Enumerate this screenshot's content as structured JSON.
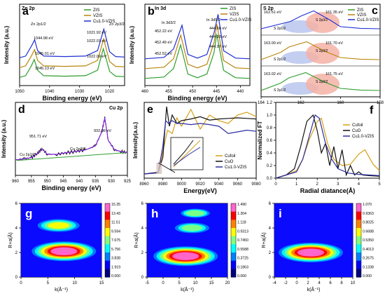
{
  "panels": {
    "a": {
      "letter": "a",
      "corner_title": "Zn 2p",
      "xlabel": "Binding energy (eV)",
      "ylabel": "Intensity (a.u.)",
      "xlim": [
        1050,
        1015
      ],
      "xticks": [
        1050,
        1040,
        1030,
        1020
      ],
      "peak_labels": [
        "Zn 2p1/2",
        "Zn 2p3/2"
      ],
      "legend": [
        {
          "name": "ZIS",
          "color": "#2e9e2e"
        },
        {
          "name": "VZIS",
          "color": "#b8860b"
        },
        {
          "name": "Cu1.0-VZIS",
          "color": "#1f2fd6"
        }
      ],
      "annotations": [
        "1044.98 eV",
        "1045.01 eV",
        "1045.13 eV",
        "1021.92 eV",
        "1022.01 eV",
        "1022.09 eV"
      ]
    },
    "b": {
      "letter": "b",
      "corner_title": "In 3d",
      "xlabel": "Binding energy (eV)",
      "ylabel": "Intensity (a.u.)",
      "xlim": [
        460,
        438
      ],
      "xticks": [
        460,
        455,
        450,
        445,
        440
      ],
      "peak_labels": [
        "In 3d3/2",
        "In 3d5/2"
      ],
      "legend": [
        {
          "name": "ZIS",
          "color": "#2e9e2e"
        },
        {
          "name": "VZIS",
          "color": "#b8860b"
        },
        {
          "name": "Cu1.0-VZIS",
          "color": "#1f2fd6"
        }
      ],
      "annotations": [
        "452.22 eV",
        "452.49 eV",
        "452.52 eV",
        "444.68 eV",
        "444.93 eV",
        "444.97 eV"
      ]
    },
    "c": {
      "letter": "c",
      "corner_title": "S 2p",
      "xlabel": "",
      "ylabel": "",
      "xlim": [
        164,
        158
      ],
      "xticks": [
        164,
        162,
        160,
        158
      ],
      "legend": [
        {
          "name": "ZIS",
          "color": "#2e9e2e"
        },
        {
          "name": "VZIS",
          "color": "#b8860b"
        },
        {
          "name": "Cu1.0-VZIS",
          "color": "#1f2fd6"
        }
      ],
      "rows": [
        {
          "left": "162.51 eV",
          "right": "161.35 eV"
        },
        {
          "left": "163.00 eV",
          "right": "161.70 eV"
        },
        {
          "left": "163.02 eV",
          "right": "161.75 eV"
        }
      ],
      "components": [
        "S 2p1/2",
        "S 2p3/2"
      ]
    },
    "d": {
      "letter": "d",
      "corner_title": "Cu 2p",
      "xlabel": "Binding energy (eV)",
      "ylabel": "Intensity (a.u.)",
      "xlim": [
        960,
        925
      ],
      "xticks": [
        960,
        955,
        950,
        945,
        940,
        935,
        930,
        925
      ],
      "annotations": [
        "951.71 eV",
        "932.06 eV"
      ],
      "peak_labels": [
        "Cu 2p1/2",
        "Cu 2p3/2"
      ]
    },
    "e": {
      "letter": "e",
      "xlabel": "Energy(eV)",
      "ylabel": "Intensity(a.u.)",
      "xlim": [
        8960,
        9080
      ],
      "xticks": [
        8960,
        8980,
        9000,
        9020,
        9040,
        9060,
        9080
      ],
      "legend": [
        {
          "name": "Cufoil",
          "color": "#d4a017"
        },
        {
          "name": "CuO",
          "color": "#111111"
        },
        {
          "name": "Cu1.0-VZIS",
          "color": "#2c2ca0"
        }
      ]
    },
    "f": {
      "letter": "f",
      "xlabel": "Radial diatance(Å)",
      "ylabel": "Normalized FT",
      "xlim": [
        0,
        5
      ],
      "ylim": [
        0,
        1.2
      ],
      "xticks": [
        0,
        1,
        2,
        3,
        4,
        5
      ],
      "yticks": [
        0.0,
        0.2,
        0.4,
        0.6,
        0.8,
        1.0,
        1.2
      ],
      "legend": [
        {
          "name": "Cufoil",
          "color": "#d4a017"
        },
        {
          "name": "CuO",
          "color": "#111111"
        },
        {
          "name": "Cu1.0-VZIS",
          "color": "#2c2ca0"
        }
      ]
    },
    "g": {
      "letter": "g",
      "xlabel": "k(Å⁻¹)",
      "ylabel": "R+a(Å)",
      "xlim": [
        0,
        15
      ],
      "ylim": [
        0,
        6
      ],
      "xticks": [
        0,
        5,
        10,
        15
      ],
      "yticks": [
        0,
        2,
        4,
        6
      ],
      "colorbar": [
        "15.35",
        "13.43",
        "11.51",
        "9.594",
        "7.675",
        "5.756",
        "3.838",
        "1.919",
        "0.000"
      ]
    },
    "h": {
      "letter": "h",
      "xlabel": "k(Å⁻¹)",
      "ylabel": "R+a(Å)",
      "xlim": [
        -5,
        20
      ],
      "ylim": [
        0,
        6
      ],
      "xticks": [
        -5,
        0,
        5,
        10,
        15,
        20
      ],
      "yticks": [
        0,
        2,
        4,
        6
      ],
      "colorbar": [
        "1.490",
        "1.304",
        "1.118",
        "0.9313",
        "0.7450",
        "0.5588",
        "0.3725",
        "0.1863",
        "0.000"
      ]
    },
    "i": {
      "letter": "i",
      "xlabel": "k(Å⁻¹)",
      "ylabel": "R+a(Å)",
      "xlim": [
        -4,
        10
      ],
      "ylim": [
        0,
        6
      ],
      "xticks": [
        -4,
        -2,
        0,
        2,
        4,
        6,
        8,
        10
      ],
      "yticks": [
        0,
        2,
        4,
        6
      ],
      "colorbar": [
        "1.070",
        "0.9363",
        "0.8025",
        "0.6688",
        "0.5350",
        "0.4013",
        "0.2675",
        "0.1338",
        "0.000"
      ]
    }
  },
  "chart_data": [
    {
      "panel": "a",
      "type": "line",
      "series": [
        {
          "name": "ZIS",
          "x": [
            1050,
            1048,
            1046,
            1045.13,
            1044,
            1042,
            1035,
            1028,
            1024,
            1022.09,
            1020,
            1018,
            1015
          ],
          "y": [
            0.05,
            0.12,
            0.55,
            0.8,
            0.35,
            0.12,
            0.1,
            0.12,
            0.35,
            1.25,
            0.3,
            0.1,
            0.08
          ]
        },
        {
          "name": "VZIS",
          "x": [
            1050,
            1048,
            1046,
            1045.01,
            1044,
            1042,
            1035,
            1028,
            1024,
            1022.01,
            1020,
            1018,
            1015
          ],
          "y": [
            0.05,
            0.12,
            0.55,
            0.8,
            0.35,
            0.12,
            0.1,
            0.12,
            0.35,
            1.25,
            0.3,
            0.1,
            0.08
          ]
        },
        {
          "name": "Cu1.0-VZIS",
          "x": [
            1050,
            1048,
            1046,
            1044.98,
            1044,
            1042,
            1035,
            1028,
            1024,
            1021.92,
            1020,
            1018,
            1015
          ],
          "y": [
            0.05,
            0.12,
            0.55,
            0.8,
            0.35,
            0.12,
            0.1,
            0.12,
            0.35,
            1.25,
            0.3,
            0.1,
            0.08
          ]
        }
      ]
    },
    {
      "panel": "b",
      "type": "line",
      "series": [
        {
          "name": "ZIS",
          "x": [
            460,
            456,
            454,
            452.52,
            451,
            449,
            447,
            445.5,
            444.97,
            443.5,
            441,
            438
          ],
          "y": [
            0.08,
            0.12,
            0.35,
            1.0,
            0.2,
            0.1,
            0.2,
            0.8,
            1.3,
            0.3,
            0.1,
            0.08
          ]
        },
        {
          "name": "VZIS",
          "x": [
            460,
            456,
            454,
            452.49,
            451,
            449,
            447,
            445.5,
            444.93,
            443.5,
            441,
            438
          ],
          "y": [
            0.08,
            0.12,
            0.35,
            1.0,
            0.2,
            0.1,
            0.2,
            0.8,
            1.3,
            0.3,
            0.1,
            0.08
          ]
        },
        {
          "name": "Cu1.0-VZIS",
          "x": [
            460,
            456,
            454,
            452.22,
            451,
            449,
            447,
            445.5,
            444.68,
            443.5,
            441,
            438
          ],
          "y": [
            0.08,
            0.12,
            0.35,
            1.0,
            0.2,
            0.1,
            0.2,
            0.8,
            1.3,
            0.3,
            0.1,
            0.08
          ]
        }
      ]
    },
    {
      "panel": "c",
      "type": "line",
      "series": [
        {
          "name": "ZIS",
          "x": [
            164,
            163.02,
            162.6,
            161.75,
            160.8,
            160,
            159,
            158
          ],
          "y": [
            0.1,
            0.45,
            0.7,
            0.95,
            0.5,
            0.2,
            0.12,
            0.1
          ]
        },
        {
          "name": "VZIS",
          "x": [
            164,
            163.0,
            162.6,
            161.7,
            160.8,
            160,
            159,
            158
          ],
          "y": [
            0.1,
            0.45,
            0.7,
            0.95,
            0.5,
            0.2,
            0.12,
            0.1
          ]
        },
        {
          "name": "Cu1.0-VZIS",
          "x": [
            164,
            162.51,
            162.0,
            161.35,
            160.5,
            160,
            159,
            158
          ],
          "y": [
            0.1,
            0.45,
            0.7,
            0.95,
            0.5,
            0.2,
            0.12,
            0.1
          ]
        }
      ]
    },
    {
      "panel": "d",
      "type": "line",
      "series": [
        {
          "name": "Cu 2p",
          "x": [
            960,
            957,
            955,
            953,
            951.71,
            950,
            947,
            944,
            941,
            938,
            935,
            933,
            932.06,
            931,
            929,
            927,
            925
          ],
          "y": [
            0.2,
            0.22,
            0.24,
            0.32,
            0.4,
            0.3,
            0.3,
            0.33,
            0.35,
            0.38,
            0.45,
            0.7,
            0.95,
            0.55,
            0.38,
            0.35,
            0.33
          ]
        }
      ]
    },
    {
      "panel": "e",
      "type": "line",
      "series": [
        {
          "name": "Cufoil",
          "x": [
            8960,
            8975,
            8980,
            8985,
            8990,
            8995,
            9000,
            9010,
            9020,
            9030,
            9040,
            9050,
            9060,
            9070,
            9080
          ],
          "y": [
            0.0,
            0.02,
            0.4,
            0.78,
            0.72,
            1.0,
            0.85,
            1.15,
            0.8,
            1.05,
            0.95,
            0.9,
            1.05,
            1.1,
            1.02
          ]
        },
        {
          "name": "CuO",
          "x": [
            8960,
            8975,
            8980,
            8984,
            8987,
            8990,
            8995,
            9000,
            9010,
            9020,
            9030,
            9040,
            9050,
            9060,
            9070,
            9080
          ],
          "y": [
            0.0,
            0.03,
            0.3,
            1.2,
            0.85,
            1.05,
            0.9,
            0.95,
            0.98,
            1.02,
            0.96,
            0.98,
            0.99,
            1.0,
            0.99,
            0.98
          ]
        },
        {
          "name": "Cu1.0-VZIS",
          "x": [
            8960,
            8975,
            8980,
            8983,
            8986,
            8990,
            8995,
            9000,
            9010,
            9020,
            9030,
            9040,
            9050,
            9060,
            9070,
            9080
          ],
          "y": [
            0.0,
            0.02,
            0.5,
            0.95,
            0.9,
            0.95,
            0.9,
            0.9,
            0.88,
            0.9,
            0.88,
            0.85,
            0.72,
            0.75,
            0.78,
            0.76
          ]
        }
      ]
    },
    {
      "panel": "f",
      "type": "line",
      "series": [
        {
          "name": "Cufoil",
          "x": [
            0,
            0.5,
            1.0,
            1.3,
            1.6,
            2.0,
            2.2,
            2.5,
            2.8,
            3.2,
            3.6,
            4.0,
            4.3,
            4.7,
            5.0
          ],
          "y": [
            0.0,
            0.05,
            0.12,
            0.3,
            0.6,
            0.9,
            0.95,
            0.55,
            0.3,
            0.2,
            0.22,
            0.38,
            0.45,
            0.22,
            0.12
          ]
        },
        {
          "name": "CuO",
          "x": [
            0,
            0.5,
            0.9,
            1.2,
            1.5,
            1.8,
            2.0,
            2.2,
            2.4,
            2.6,
            2.8,
            3.0,
            3.2,
            3.4,
            3.6,
            3.8,
            4.0,
            4.2,
            4.5,
            5.0
          ],
          "y": [
            0.0,
            0.05,
            0.15,
            0.5,
            0.9,
            1.0,
            0.75,
            0.4,
            0.55,
            0.2,
            0.5,
            0.15,
            0.45,
            0.05,
            0.2,
            0.05,
            0.1,
            0.05,
            0.04,
            0.03
          ]
        },
        {
          "name": "Cu1.0-VZIS",
          "x": [
            0,
            0.5,
            1.0,
            1.3,
            1.6,
            1.9,
            2.1,
            2.4,
            2.7,
            3.0,
            3.5,
            4.0,
            4.5,
            5.0
          ],
          "y": [
            0.0,
            0.05,
            0.1,
            0.3,
            0.65,
            1.0,
            0.95,
            0.55,
            0.3,
            0.15,
            0.08,
            0.06,
            0.05,
            0.04
          ]
        }
      ]
    },
    {
      "panel": "g",
      "type": "heatmap",
      "blobs": [
        {
          "k": 8,
          "r": 2.1,
          "value": 15.35
        },
        {
          "k": 7,
          "r": 4.2,
          "value": 8.5
        }
      ]
    },
    {
      "panel": "h",
      "type": "heatmap",
      "blobs": [
        {
          "k": 7,
          "r": 1.7,
          "value": 1.49
        },
        {
          "k": 9,
          "r": 4.0,
          "value": 0.6
        },
        {
          "k": 10,
          "r": 5.2,
          "value": 0.45
        }
      ]
    },
    {
      "panel": "i",
      "type": "heatmap",
      "blobs": [
        {
          "k": 2.5,
          "r": 2.0,
          "value": 1.07
        }
      ]
    }
  ]
}
